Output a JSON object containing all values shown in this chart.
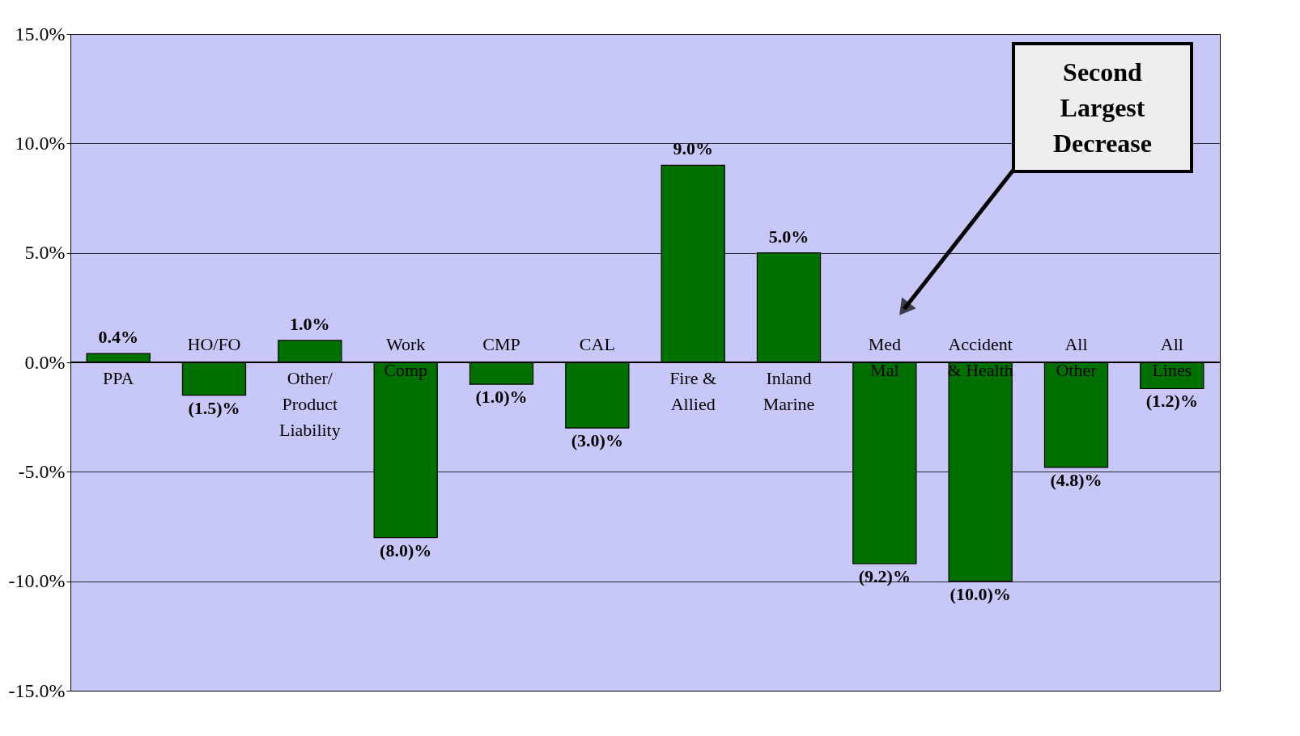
{
  "chart_data": {
    "type": "bar",
    "categories": [
      "PPA",
      "HO/FO",
      "Other/\nProduct\nLiability",
      "Work\nComp",
      "CMP",
      "CAL",
      "Fire &\nAllied",
      "Inland\nMarine",
      "Med\nMal",
      "Accident\n& Health",
      "All\nOther",
      "All\nLines"
    ],
    "values": [
      0.4,
      -1.5,
      1.0,
      -8.0,
      -1.0,
      -3.0,
      9.0,
      5.0,
      -9.2,
      -10.0,
      -4.8,
      -1.2
    ],
    "value_labels": [
      "0.4%",
      "(1.5)%",
      "1.0%",
      "(8.0)%",
      "(1.0)%",
      "(3.0)%",
      "9.0%",
      "5.0%",
      "(9.2)%",
      "(10.0)%",
      "(4.8)%",
      "(1.2)%"
    ],
    "color": "#007000",
    "ylim": [
      -15,
      15
    ],
    "yticks": [
      {
        "value": -15,
        "label": "-15.0%"
      },
      {
        "value": -10,
        "label": "-10.0%"
      },
      {
        "value": -5,
        "label": "-5.0%"
      },
      {
        "value": 0,
        "label": "0.0%"
      },
      {
        "value": 5,
        "label": "5.0%"
      },
      {
        "value": 10,
        "label": "10.0%"
      },
      {
        "value": 15,
        "label": "15.0%"
      }
    ],
    "grid": "y",
    "annotations": [
      "Second\nLargest\nDecrease"
    ]
  }
}
